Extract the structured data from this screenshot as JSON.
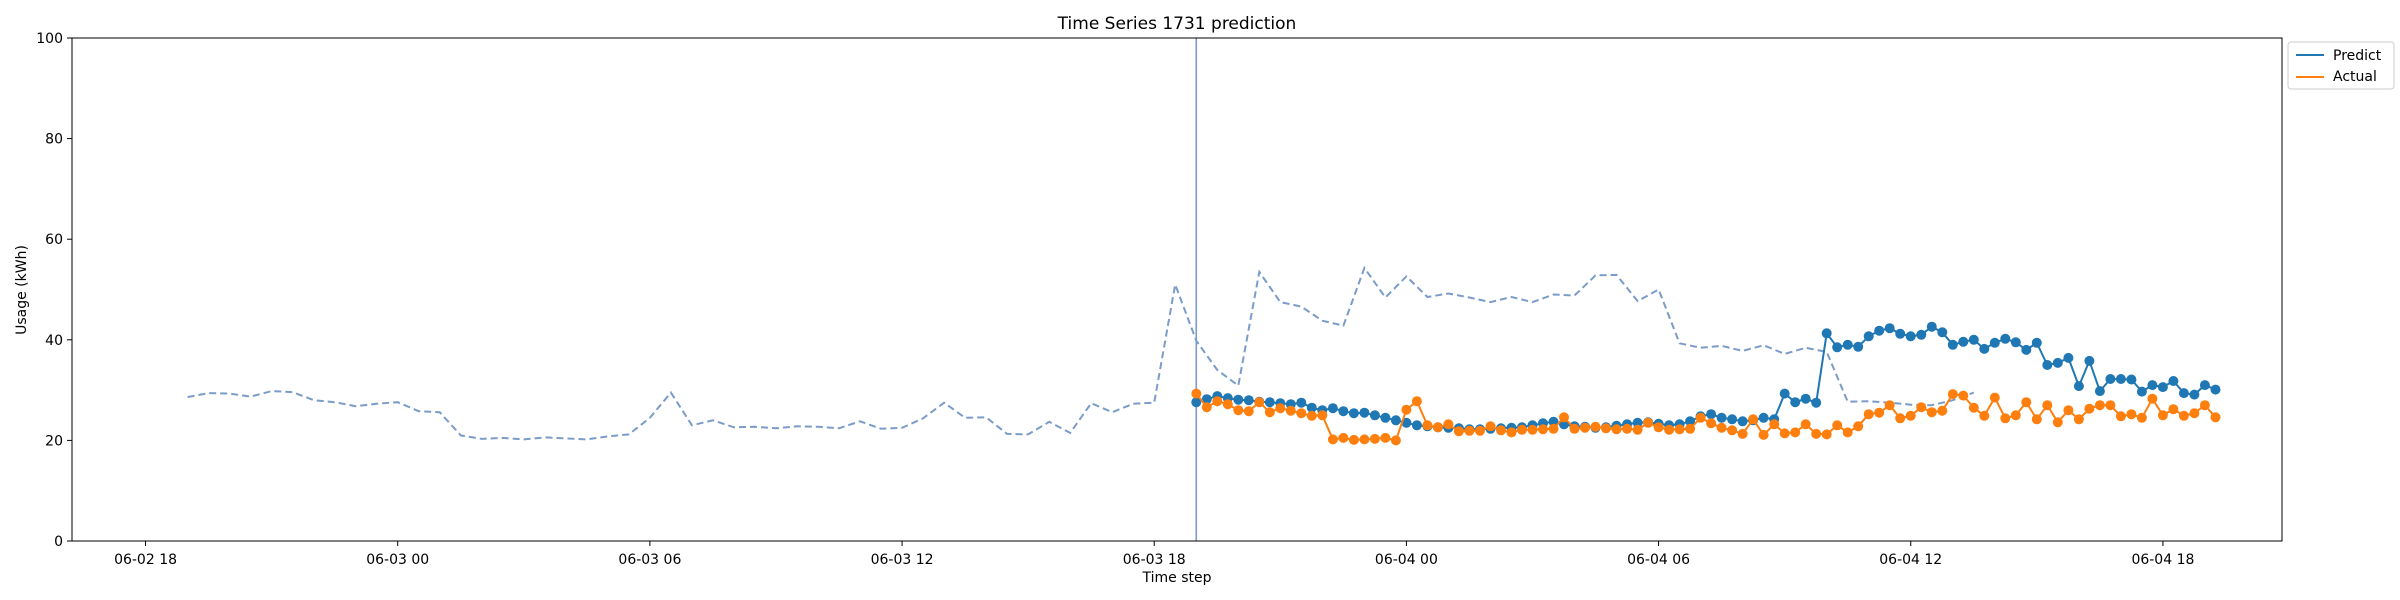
{
  "chart_data": {
    "type": "line",
    "title": "Time Series 1731 prediction",
    "xlabel": "Time step",
    "ylabel": "Usage (kWh)",
    "ylim": [
      0,
      100
    ],
    "yticks": [
      0,
      20,
      40,
      60,
      80,
      100
    ],
    "x_axis": "datetime",
    "xlim": [
      "2025-06-02T16:15",
      "2025-06-04T20:50"
    ],
    "xticks": [
      {
        "t": "2025-06-02T18:00",
        "label": "06-02 18"
      },
      {
        "t": "2025-06-03T00:00",
        "label": "06-03 00"
      },
      {
        "t": "2025-06-03T06:00",
        "label": "06-03 06"
      },
      {
        "t": "2025-06-03T12:00",
        "label": "06-03 12"
      },
      {
        "t": "2025-06-03T18:00",
        "label": "06-03 18"
      },
      {
        "t": "2025-06-04T00:00",
        "label": "06-04 00"
      },
      {
        "t": "2025-06-04T06:00",
        "label": "06-04 06"
      },
      {
        "t": "2025-06-04T12:00",
        "label": "06-04 12"
      },
      {
        "t": "2025-06-04T18:00",
        "label": "06-04 18"
      }
    ],
    "legend": {
      "placement": "upper-right-outside"
    },
    "colors": {
      "predict": "#1f77b4",
      "actual": "#ff7f0e",
      "history": "#7b9cc8",
      "divider": "#7b9cc8"
    },
    "divider_time": "2025-06-03T19:00",
    "history": {
      "start": "2025-06-02T19:00",
      "step_minutes": 30,
      "values": [
        28.6,
        29.4,
        29.3,
        28.7,
        29.8,
        29.6,
        28.0,
        27.6,
        26.8,
        27.3,
        27.6,
        25.8,
        25.6,
        21.0,
        20.3,
        20.5,
        20.2,
        20.6,
        20.4,
        20.2,
        20.8,
        21.2,
        24.5,
        29.5,
        23.0,
        24.0,
        22.6,
        22.7,
        22.4,
        22.8,
        22.7,
        22.4,
        23.8,
        22.3,
        22.5,
        24.4,
        27.5,
        24.5,
        24.6,
        21.3,
        21.2,
        23.7,
        21.5,
        27.4,
        25.6,
        27.3,
        27.5,
        51.0,
        39.8,
        34.0,
        30.9,
        53.5,
        47.5,
        46.6,
        43.8,
        42.8,
        54.3,
        48.4,
        52.6,
        48.5,
        49.2,
        48.4,
        47.5,
        48.5,
        47.5,
        49.0,
        48.8,
        52.8,
        52.9,
        47.7,
        50.0,
        39.3,
        38.4,
        38.8,
        37.8,
        38.9,
        37.2,
        38.4,
        37.6,
        27.7,
        27.8,
        27.5,
        27.1,
        27.0,
        28.0,
        29.5
      ]
    },
    "forecast_start": "2025-06-03T19:00",
    "forecast_step_minutes": 15,
    "series": [
      {
        "name": "Predict",
        "values": [
          27.6,
          28.2,
          28.8,
          28.4,
          28.1,
          28.0,
          27.7,
          27.6,
          27.4,
          27.2,
          27.5,
          26.5,
          26.0,
          26.4,
          25.8,
          25.4,
          25.5,
          25.0,
          24.5,
          24.0,
          23.5,
          23.0,
          22.8,
          22.6,
          22.5,
          22.4,
          22.2,
          22.2,
          22.3,
          22.4,
          22.5,
          22.6,
          23.0,
          23.4,
          23.7,
          23.2,
          22.8,
          22.7,
          22.5,
          22.6,
          22.9,
          23.2,
          23.5,
          23.6,
          23.3,
          23.0,
          23.2,
          23.8,
          24.8,
          25.2,
          24.5,
          24.2,
          23.8,
          24.0,
          24.5,
          24.2,
          29.3,
          27.6,
          28.3,
          27.5,
          41.3,
          38.5,
          39.0,
          38.6,
          40.7,
          41.8,
          42.3,
          41.2,
          40.7,
          41.0,
          42.6,
          41.5,
          39.0,
          39.6,
          40.0,
          38.2,
          39.4,
          40.2,
          39.5,
          38.0,
          39.4,
          35.0,
          35.4,
          36.4,
          30.8,
          35.8,
          29.8,
          32.2,
          32.2,
          32.1,
          29.7,
          31.0,
          30.6,
          31.8,
          29.4,
          29.1,
          31.0,
          30.1
        ]
      },
      {
        "name": "Actual",
        "values": [
          29.3,
          26.6,
          27.8,
          27.2,
          26.0,
          25.8,
          27.6,
          25.6,
          26.4,
          25.9,
          25.4,
          24.9,
          25.0,
          20.2,
          20.5,
          20.1,
          20.2,
          20.3,
          20.5,
          20.0,
          26.1,
          27.8,
          23.0,
          22.6,
          23.2,
          21.8,
          21.9,
          21.9,
          22.8,
          22.0,
          21.6,
          22.1,
          22.1,
          22.2,
          22.3,
          24.6,
          22.3,
          22.5,
          22.7,
          22.4,
          22.2,
          22.3,
          22.1,
          23.5,
          22.6,
          22.1,
          22.2,
          22.3,
          24.5,
          23.4,
          22.5,
          22.0,
          21.3,
          24.2,
          21.1,
          23.2,
          21.4,
          21.6,
          23.2,
          21.3,
          21.2,
          23.0,
          21.6,
          22.8,
          25.2,
          25.5,
          27.0,
          24.4,
          24.9,
          26.6,
          25.6,
          25.9,
          29.2,
          28.9,
          26.5,
          24.9,
          28.5,
          24.4,
          25.0,
          27.6,
          24.2,
          27.0,
          23.6,
          26.0,
          24.2,
          26.3,
          27.0,
          27.0,
          24.8,
          25.2,
          24.5,
          28.3,
          25.0,
          26.2,
          24.9,
          25.4,
          27.0,
          24.6
        ]
      }
    ]
  }
}
